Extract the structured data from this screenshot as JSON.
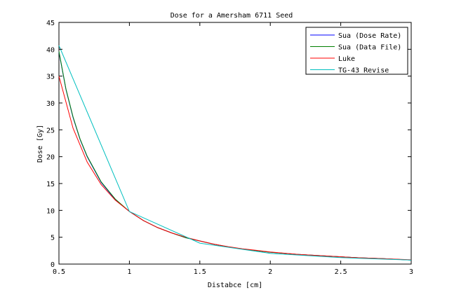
{
  "chart_data": {
    "type": "line",
    "title": "Dose for a Amersham 6711 Seed",
    "xlabel": "Distabce [cm]",
    "ylabel": "Dose [Gy]",
    "xlim": [
      0.5,
      3
    ],
    "ylim": [
      0,
      45
    ],
    "x_ticks": [
      "0.5",
      "1",
      "1.5",
      "2",
      "2.5",
      "3"
    ],
    "y_ticks": [
      "0",
      "5",
      "10",
      "15",
      "20",
      "25",
      "30",
      "35",
      "40",
      "45"
    ],
    "grid": false,
    "legend_position": "top-right",
    "series": [
      {
        "name": "Sua (Dose Rate)",
        "color": "#0000ff",
        "x": [
          0.5,
          0.55,
          0.6,
          0.65,
          0.7,
          0.8,
          0.9,
          1.0,
          1.1,
          1.2,
          1.3,
          1.4,
          1.5,
          1.6,
          1.7,
          1.8,
          1.9,
          2.0,
          2.2,
          2.4,
          2.6,
          2.8,
          3.0
        ],
        "y": [
          39.5,
          32.5,
          27.3,
          23.2,
          20.0,
          15.2,
          12.0,
          9.8,
          8.1,
          6.8,
          5.8,
          4.9,
          4.3,
          3.7,
          3.2,
          2.8,
          2.5,
          2.2,
          1.8,
          1.5,
          1.2,
          1.0,
          0.75
        ]
      },
      {
        "name": "Sua (Data File)",
        "color": "#007f00",
        "x": [
          0.5,
          0.55,
          0.6,
          0.65,
          0.7,
          0.8,
          0.9,
          1.0,
          1.1,
          1.2,
          1.3,
          1.4,
          1.5,
          1.6,
          1.7,
          1.8,
          1.9,
          2.0,
          2.2,
          2.4,
          2.6,
          2.8,
          3.0
        ],
        "y": [
          39.6,
          32.6,
          27.4,
          23.3,
          20.1,
          15.3,
          12.1,
          9.8,
          8.1,
          6.8,
          5.8,
          4.9,
          4.3,
          3.7,
          3.2,
          2.8,
          2.5,
          2.2,
          1.8,
          1.5,
          1.2,
          1.0,
          0.75
        ]
      },
      {
        "name": "Luke",
        "color": "#ff0000",
        "x": [
          0.5,
          0.6,
          0.7,
          0.8,
          0.9,
          1.0,
          1.1,
          1.2,
          1.3,
          1.4,
          1.5,
          1.6,
          1.7,
          1.8,
          1.9,
          2.0,
          2.2,
          2.4,
          2.6,
          2.8,
          3.0
        ],
        "y": [
          35.0,
          25.3,
          19.0,
          14.8,
          11.9,
          9.8,
          8.1,
          6.8,
          5.8,
          5.0,
          4.3,
          3.7,
          3.25,
          2.85,
          2.55,
          2.25,
          1.8,
          1.5,
          1.2,
          1.0,
          0.8
        ]
      },
      {
        "name": "TG-43 Revise",
        "color": "#00bfbf",
        "x": [
          0.5,
          1.0,
          1.5,
          2.0,
          2.5,
          3.0
        ],
        "y": [
          40.7,
          9.8,
          3.9,
          2.0,
          1.2,
          0.75
        ]
      }
    ]
  }
}
